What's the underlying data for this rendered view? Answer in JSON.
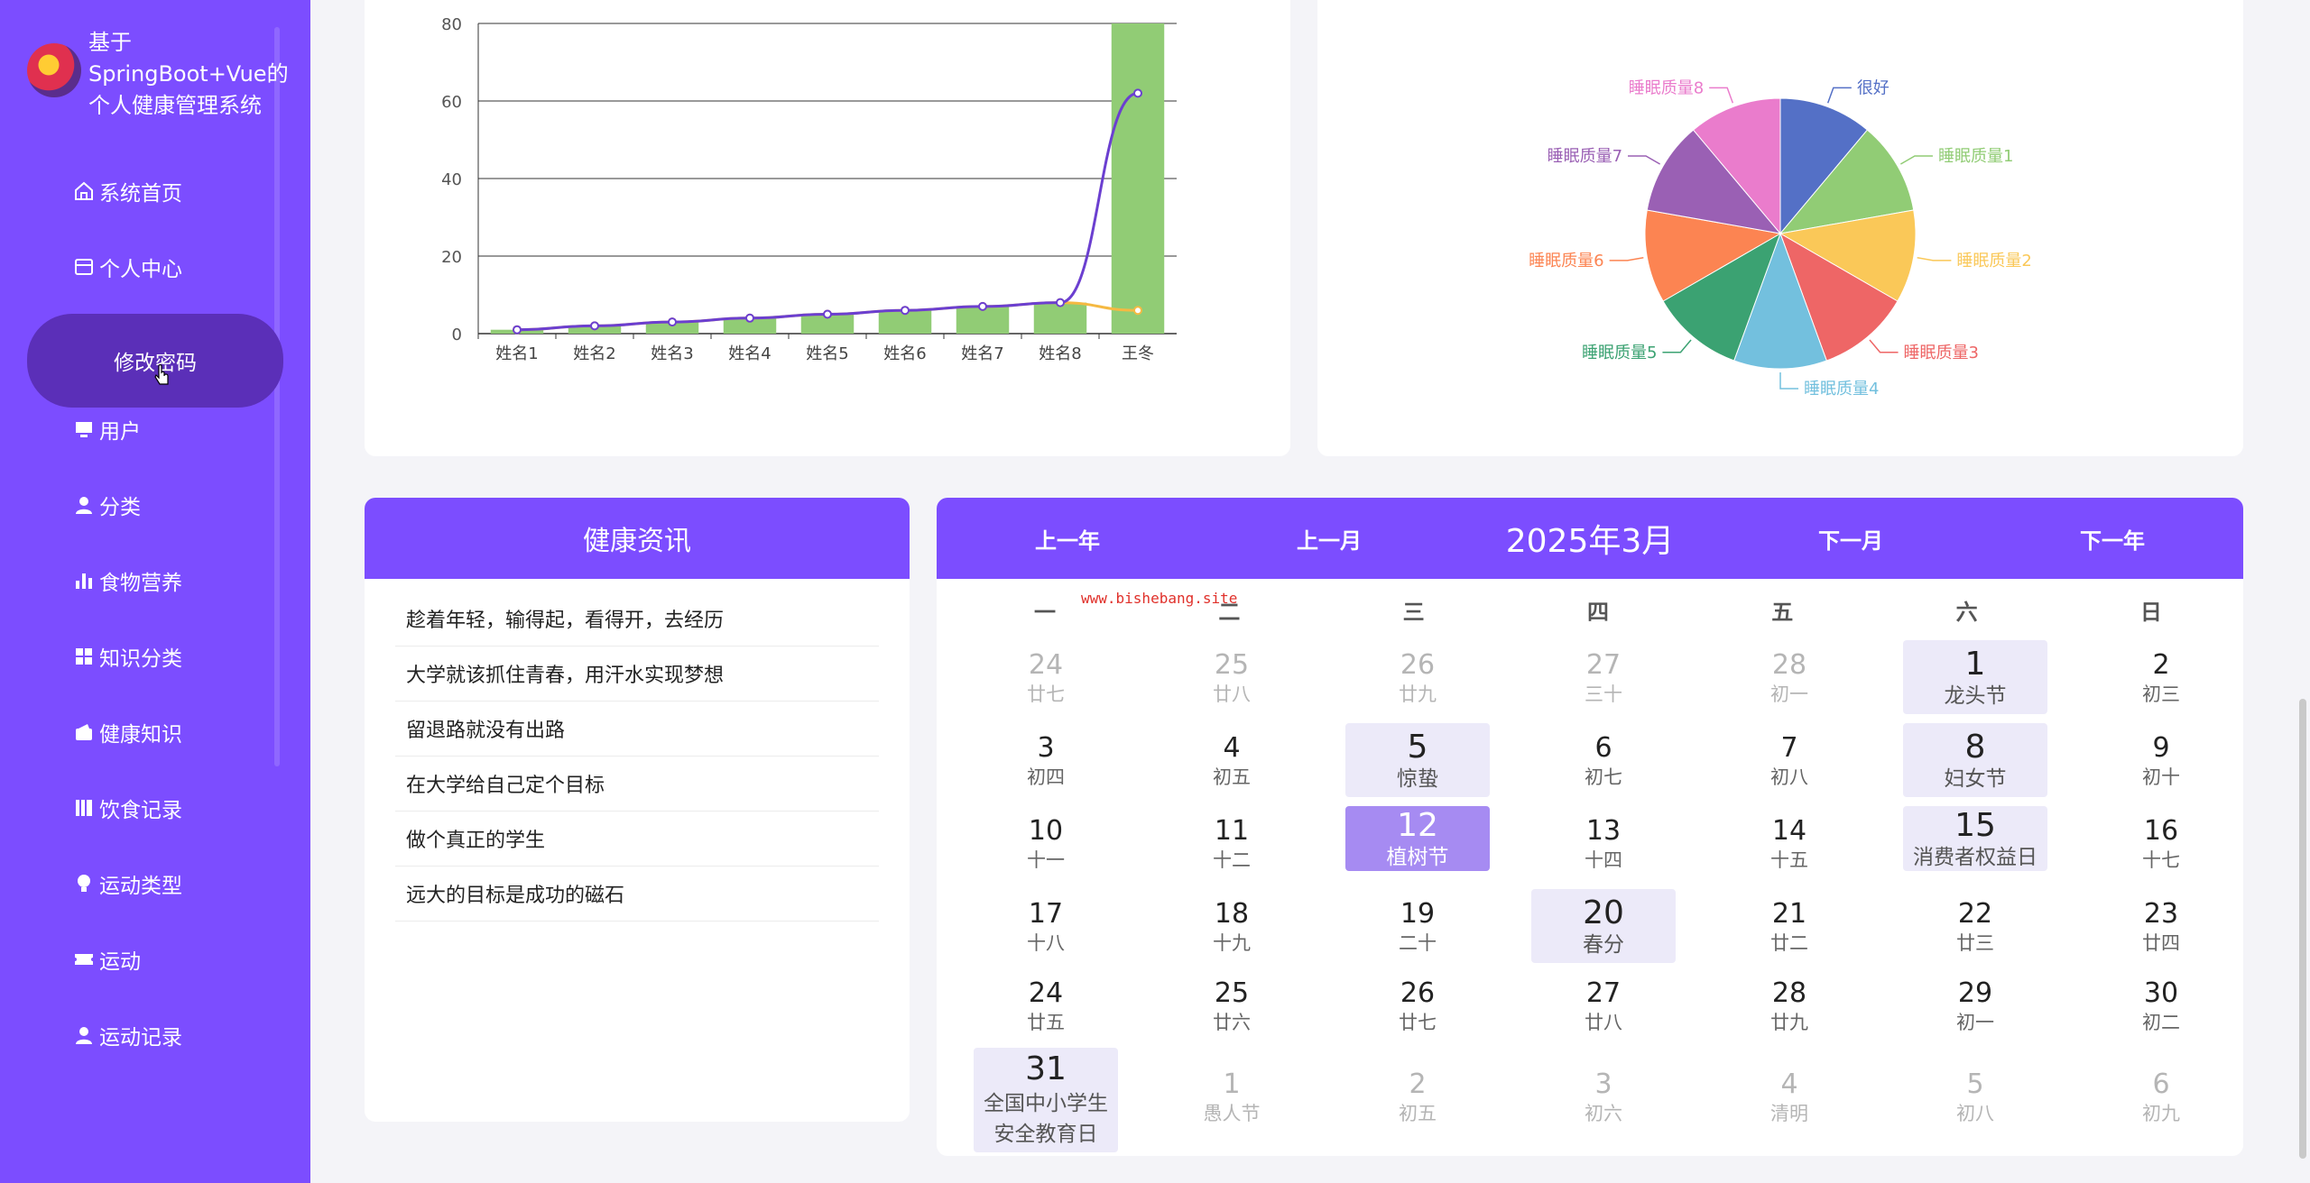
{
  "app": {
    "title": "基于SpringBoot+Vue的个人健康管理系统"
  },
  "sidebar": {
    "items": [
      {
        "label": "系统首页",
        "icon": "home-icon"
      },
      {
        "label": "个人中心",
        "icon": "profile-card-icon"
      },
      {
        "label": "修改密码",
        "icon": "",
        "active": true
      },
      {
        "label": "用户",
        "icon": "monitor-icon"
      },
      {
        "label": "分类",
        "icon": "user-icon"
      },
      {
        "label": "食物营养",
        "icon": "bar-chart-icon"
      },
      {
        "label": "知识分类",
        "icon": "grid-icon"
      },
      {
        "label": "健康知识",
        "icon": "wallet-icon"
      },
      {
        "label": "饮食记录",
        "icon": "book-icon"
      },
      {
        "label": "运动类型",
        "icon": "lightbulb-icon"
      },
      {
        "label": "运动",
        "icon": "ticket-icon"
      },
      {
        "label": "运动记录",
        "icon": "user-icon"
      }
    ]
  },
  "colors": {
    "accent": "#7c4dff",
    "sidebar_active": "#5b2fb8",
    "bar": "#91cc75",
    "line_purple": "#6b3fd0",
    "line_orange": "#f5b942"
  },
  "chart_data": [
    {
      "type": "bar",
      "categories": [
        "姓名1",
        "姓名2",
        "姓名3",
        "姓名4",
        "姓名5",
        "姓名6",
        "姓名7",
        "姓名8",
        "王冬"
      ],
      "series": [
        {
          "type": "bar",
          "values": [
            1,
            2,
            3,
            4,
            5,
            6,
            7,
            8,
            80
          ]
        },
        {
          "type": "line",
          "color": "purple",
          "values": [
            1,
            2,
            3,
            4,
            5,
            6,
            7,
            8,
            62
          ]
        },
        {
          "type": "line",
          "color": "orange",
          "values": [
            1,
            2,
            3,
            4,
            5,
            6,
            7,
            8,
            6
          ]
        }
      ],
      "ylim": [
        0,
        80
      ],
      "yticks": [
        0,
        20,
        40,
        60,
        80
      ],
      "grid": true
    },
    {
      "type": "pie",
      "slices": [
        {
          "label": "很好",
          "value": 1,
          "color": "#5470c6"
        },
        {
          "label": "睡眠质量1",
          "value": 1,
          "color": "#91cc75"
        },
        {
          "label": "睡眠质量2",
          "value": 1,
          "color": "#fac858"
        },
        {
          "label": "睡眠质量3",
          "value": 1,
          "color": "#ee6666"
        },
        {
          "label": "睡眠质量4",
          "value": 1,
          "color": "#73c0de"
        },
        {
          "label": "睡眠质量5",
          "value": 1,
          "color": "#3ba272"
        },
        {
          "label": "睡眠质量6",
          "value": 1,
          "color": "#fc8452"
        },
        {
          "label": "睡眠质量7",
          "value": 1,
          "color": "#9a60b4"
        },
        {
          "label": "睡眠质量8",
          "value": 1,
          "color": "#ea7ccc"
        }
      ]
    }
  ],
  "news": {
    "title": "健康资讯",
    "items": [
      "趁着年轻，输得起，看得开，去经历",
      "大学就该抓住青春，用汗水实现梦想",
      "留退路就没有出路",
      "在大学给自己定个目标",
      "做个真正的学生",
      "远大的目标是成功的磁石"
    ]
  },
  "calendar": {
    "prev_year": "上一年",
    "prev_month": "上一月",
    "title": "2025年3月",
    "next_month": "下一月",
    "next_year": "下一年",
    "watermark": "www.bishebang.site",
    "weekdays": [
      "一",
      "二",
      "三",
      "四",
      "五",
      "六",
      "日"
    ],
    "weeks": [
      [
        {
          "d": "24",
          "l": "廿七",
          "other": true
        },
        {
          "d": "25",
          "l": "廿八",
          "other": true
        },
        {
          "d": "26",
          "l": "廿九",
          "other": true
        },
        {
          "d": "27",
          "l": "三十",
          "other": true
        },
        {
          "d": "28",
          "l": "初一",
          "other": true
        },
        {
          "d": "1",
          "l": "龙头节",
          "fest": true
        },
        {
          "d": "2",
          "l": "初三"
        }
      ],
      [
        {
          "d": "3",
          "l": "初四"
        },
        {
          "d": "4",
          "l": "初五"
        },
        {
          "d": "5",
          "l": "惊蛰",
          "fest": true
        },
        {
          "d": "6",
          "l": "初七"
        },
        {
          "d": "7",
          "l": "初八"
        },
        {
          "d": "8",
          "l": "妇女节",
          "fest": true
        },
        {
          "d": "9",
          "l": "初十"
        }
      ],
      [
        {
          "d": "10",
          "l": "十一"
        },
        {
          "d": "11",
          "l": "十二"
        },
        {
          "d": "12",
          "l": "植树节",
          "fest": true,
          "selected": true
        },
        {
          "d": "13",
          "l": "十四"
        },
        {
          "d": "14",
          "l": "十五"
        },
        {
          "d": "15",
          "l": "消费者权益日",
          "fest": true
        },
        {
          "d": "16",
          "l": "十七"
        }
      ],
      [
        {
          "d": "17",
          "l": "十八"
        },
        {
          "d": "18",
          "l": "十九"
        },
        {
          "d": "19",
          "l": "二十"
        },
        {
          "d": "20",
          "l": "春分",
          "fest": true
        },
        {
          "d": "21",
          "l": "廿二"
        },
        {
          "d": "22",
          "l": "廿三"
        },
        {
          "d": "23",
          "l": "廿四"
        }
      ],
      [
        {
          "d": "24",
          "l": "廿五"
        },
        {
          "d": "25",
          "l": "廿六"
        },
        {
          "d": "26",
          "l": "廿七"
        },
        {
          "d": "27",
          "l": "廿八"
        },
        {
          "d": "28",
          "l": "廿九"
        },
        {
          "d": "29",
          "l": "初一"
        },
        {
          "d": "30",
          "l": "初二"
        }
      ],
      [
        {
          "d": "31",
          "l": "全国中小学生安全教育日",
          "fest": true
        },
        {
          "d": "1",
          "l": "愚人节",
          "other": true
        },
        {
          "d": "2",
          "l": "初五",
          "other": true
        },
        {
          "d": "3",
          "l": "初六",
          "other": true
        },
        {
          "d": "4",
          "l": "清明",
          "other": true
        },
        {
          "d": "5",
          "l": "初八",
          "other": true
        },
        {
          "d": "6",
          "l": "初九",
          "other": true
        }
      ]
    ]
  }
}
